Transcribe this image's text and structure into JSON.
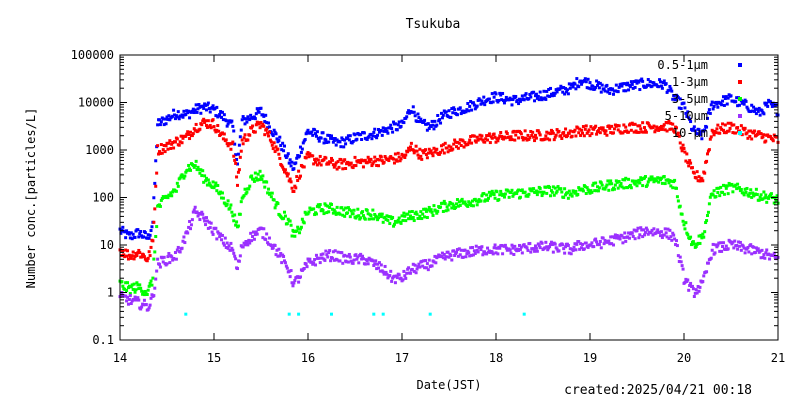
{
  "chart_data": {
    "type": "scatter",
    "title": "Tsukuba",
    "xlabel": "Date(JST)",
    "ylabel": "Number conc.[particles/L]",
    "x_ticks": [
      "14",
      "15",
      "16",
      "17",
      "18",
      "19",
      "20",
      "21"
    ],
    "xlim": [
      14,
      21
    ],
    "y_scale": "log",
    "ylim": [
      0.1,
      100000
    ],
    "y_ticks": [
      "0.1",
      "1",
      "10",
      "100",
      "1000",
      "10000",
      "100000"
    ],
    "legend_position": "top-right",
    "series": [
      {
        "name": "0.5-1μm",
        "color": "#0000ff",
        "points": [
          [
            14.0,
            20
          ],
          [
            14.1,
            15
          ],
          [
            14.2,
            18
          ],
          [
            14.3,
            14
          ],
          [
            14.35,
            30
          ],
          [
            14.4,
            3500
          ],
          [
            14.5,
            4500
          ],
          [
            14.6,
            6000
          ],
          [
            14.7,
            5500
          ],
          [
            14.8,
            7000
          ],
          [
            14.9,
            8000
          ],
          [
            15.0,
            7000
          ],
          [
            15.1,
            5000
          ],
          [
            15.2,
            3000
          ],
          [
            15.25,
            500
          ],
          [
            15.3,
            4000
          ],
          [
            15.4,
            5000
          ],
          [
            15.5,
            6500
          ],
          [
            15.6,
            3000
          ],
          [
            15.7,
            1500
          ],
          [
            15.8,
            600
          ],
          [
            15.85,
            400
          ],
          [
            15.9,
            800
          ],
          [
            16.0,
            2500
          ],
          [
            16.1,
            2000
          ],
          [
            16.2,
            1700
          ],
          [
            16.3,
            1400
          ],
          [
            16.4,
            1500
          ],
          [
            16.5,
            1800
          ],
          [
            16.6,
            2000
          ],
          [
            16.7,
            2200
          ],
          [
            16.8,
            2500
          ],
          [
            16.9,
            3000
          ],
          [
            17.0,
            3200
          ],
          [
            17.05,
            5000
          ],
          [
            17.1,
            8000
          ],
          [
            17.2,
            3500
          ],
          [
            17.3,
            3000
          ],
          [
            17.4,
            4500
          ],
          [
            17.5,
            6000
          ],
          [
            17.7,
            8000
          ],
          [
            17.9,
            12000
          ],
          [
            18.0,
            13000
          ],
          [
            18.2,
            11000
          ],
          [
            18.4,
            13000
          ],
          [
            18.6,
            16000
          ],
          [
            18.8,
            20000
          ],
          [
            18.9,
            30000
          ],
          [
            19.0,
            25000
          ],
          [
            19.2,
            18000
          ],
          [
            19.4,
            22000
          ],
          [
            19.6,
            25000
          ],
          [
            19.8,
            24000
          ],
          [
            19.9,
            12000
          ],
          [
            20.0,
            8000
          ],
          [
            20.1,
            2500
          ],
          [
            20.2,
            2000
          ],
          [
            20.3,
            9000
          ],
          [
            20.5,
            12000
          ],
          [
            20.7,
            8000
          ],
          [
            20.8,
            6000
          ],
          [
            20.9,
            9000
          ],
          [
            21.0,
            7000
          ]
        ]
      },
      {
        "name": "1-3μm",
        "color": "#ff0000",
        "points": [
          [
            14.0,
            8
          ],
          [
            14.1,
            6
          ],
          [
            14.2,
            7
          ],
          [
            14.3,
            5
          ],
          [
            14.35,
            12
          ],
          [
            14.4,
            1000
          ],
          [
            14.5,
            1200
          ],
          [
            14.6,
            1500
          ],
          [
            14.7,
            1800
          ],
          [
            14.8,
            3000
          ],
          [
            14.9,
            3800
          ],
          [
            15.0,
            3500
          ],
          [
            15.1,
            1800
          ],
          [
            15.2,
            1200
          ],
          [
            15.25,
            200
          ],
          [
            15.3,
            1500
          ],
          [
            15.4,
            2500
          ],
          [
            15.5,
            3500
          ],
          [
            15.6,
            1800
          ],
          [
            15.7,
            700
          ],
          [
            15.8,
            250
          ],
          [
            15.85,
            150
          ],
          [
            15.9,
            300
          ],
          [
            16.0,
            700
          ],
          [
            16.1,
            600
          ],
          [
            16.2,
            550
          ],
          [
            16.3,
            500
          ],
          [
            16.4,
            500
          ],
          [
            16.5,
            550
          ],
          [
            16.6,
            550
          ],
          [
            16.7,
            600
          ],
          [
            16.8,
            600
          ],
          [
            16.9,
            650
          ],
          [
            17.0,
            700
          ],
          [
            17.05,
            800
          ],
          [
            17.1,
            1200
          ],
          [
            17.2,
            800
          ],
          [
            17.3,
            850
          ],
          [
            17.4,
            1000
          ],
          [
            17.5,
            1200
          ],
          [
            17.7,
            1500
          ],
          [
            17.9,
            1800
          ],
          [
            18.0,
            1800
          ],
          [
            18.2,
            2000
          ],
          [
            18.4,
            2000
          ],
          [
            18.6,
            2100
          ],
          [
            18.8,
            2300
          ],
          [
            18.9,
            2600
          ],
          [
            19.0,
            2500
          ],
          [
            19.2,
            2600
          ],
          [
            19.4,
            3000
          ],
          [
            19.6,
            3000
          ],
          [
            19.8,
            3200
          ],
          [
            19.9,
            3000
          ],
          [
            20.0,
            900
          ],
          [
            20.1,
            300
          ],
          [
            20.2,
            250
          ],
          [
            20.3,
            2500
          ],
          [
            20.5,
            3000
          ],
          [
            20.7,
            2200
          ],
          [
            20.8,
            2000
          ],
          [
            20.9,
            1800
          ],
          [
            21.0,
            1600
          ]
        ]
      },
      {
        "name": "3-5μm",
        "color": "#00ff00",
        "points": [
          [
            14.0,
            1.5
          ],
          [
            14.1,
            1.2
          ],
          [
            14.2,
            1.3
          ],
          [
            14.3,
            1
          ],
          [
            14.35,
            2
          ],
          [
            14.4,
            60
          ],
          [
            14.5,
            100
          ],
          [
            14.6,
            150
          ],
          [
            14.7,
            400
          ],
          [
            14.8,
            500
          ],
          [
            14.9,
            250
          ],
          [
            15.0,
            180
          ],
          [
            15.1,
            100
          ],
          [
            15.2,
            50
          ],
          [
            15.25,
            20
          ],
          [
            15.3,
            100
          ],
          [
            15.4,
            250
          ],
          [
            15.5,
            300
          ],
          [
            15.6,
            120
          ],
          [
            15.7,
            50
          ],
          [
            15.8,
            30
          ],
          [
            15.85,
            15
          ],
          [
            15.9,
            20
          ],
          [
            16.0,
            50
          ],
          [
            16.1,
            55
          ],
          [
            16.2,
            60
          ],
          [
            16.3,
            55
          ],
          [
            16.4,
            50
          ],
          [
            16.5,
            45
          ],
          [
            16.6,
            45
          ],
          [
            16.7,
            45
          ],
          [
            16.8,
            35
          ],
          [
            16.9,
            30
          ],
          [
            17.0,
            35
          ],
          [
            17.05,
            40
          ],
          [
            17.1,
            40
          ],
          [
            17.2,
            45
          ],
          [
            17.3,
            50
          ],
          [
            17.4,
            60
          ],
          [
            17.5,
            70
          ],
          [
            17.7,
            80
          ],
          [
            17.9,
            100
          ],
          [
            18.0,
            110
          ],
          [
            18.2,
            120
          ],
          [
            18.4,
            130
          ],
          [
            18.6,
            140
          ],
          [
            18.8,
            120
          ],
          [
            18.9,
            150
          ],
          [
            19.0,
            150
          ],
          [
            19.2,
            180
          ],
          [
            19.4,
            200
          ],
          [
            19.6,
            220
          ],
          [
            19.8,
            230
          ],
          [
            19.9,
            200
          ],
          [
            20.0,
            30
          ],
          [
            20.1,
            10
          ],
          [
            20.2,
            15
          ],
          [
            20.3,
            120
          ],
          [
            20.5,
            160
          ],
          [
            20.7,
            130
          ],
          [
            20.8,
            110
          ],
          [
            20.9,
            100
          ],
          [
            21.0,
            90
          ]
        ]
      },
      {
        "name": "5-10μm",
        "color": "#9b30ff",
        "points": [
          [
            14.0,
            0.8
          ],
          [
            14.1,
            0.7
          ],
          [
            14.2,
            0.6
          ],
          [
            14.3,
            0.5
          ],
          [
            14.35,
            0.8
          ],
          [
            14.4,
            4
          ],
          [
            14.5,
            5
          ],
          [
            14.6,
            6
          ],
          [
            14.7,
            15
          ],
          [
            14.8,
            50
          ],
          [
            14.9,
            35
          ],
          [
            15.0,
            20
          ],
          [
            15.1,
            12
          ],
          [
            15.2,
            8
          ],
          [
            15.25,
            3
          ],
          [
            15.3,
            10
          ],
          [
            15.4,
            15
          ],
          [
            15.5,
            20
          ],
          [
            15.6,
            12
          ],
          [
            15.7,
            6
          ],
          [
            15.8,
            3
          ],
          [
            15.85,
            1.5
          ],
          [
            15.9,
            2
          ],
          [
            16.0,
            4
          ],
          [
            16.1,
            5
          ],
          [
            16.2,
            6
          ],
          [
            16.3,
            6
          ],
          [
            16.4,
            5
          ],
          [
            16.5,
            5
          ],
          [
            16.6,
            5
          ],
          [
            16.7,
            4
          ],
          [
            16.8,
            3
          ],
          [
            16.9,
            2
          ],
          [
            17.0,
            2
          ],
          [
            17.05,
            2.5
          ],
          [
            17.1,
            3
          ],
          [
            17.2,
            3.5
          ],
          [
            17.3,
            4
          ],
          [
            17.4,
            5
          ],
          [
            17.5,
            6
          ],
          [
            17.7,
            7
          ],
          [
            17.9,
            8
          ],
          [
            18.0,
            8
          ],
          [
            18.2,
            8
          ],
          [
            18.4,
            9
          ],
          [
            18.6,
            9
          ],
          [
            18.8,
            8
          ],
          [
            18.9,
            10
          ],
          [
            19.0,
            10
          ],
          [
            19.2,
            12
          ],
          [
            19.4,
            15
          ],
          [
            19.6,
            20
          ],
          [
            19.8,
            18
          ],
          [
            19.9,
            15
          ],
          [
            20.0,
            2
          ],
          [
            20.1,
            1
          ],
          [
            20.2,
            1.5
          ],
          [
            20.3,
            8
          ],
          [
            20.5,
            10
          ],
          [
            20.7,
            8
          ],
          [
            20.8,
            7
          ],
          [
            20.9,
            6
          ],
          [
            21.0,
            5
          ]
        ]
      },
      {
        "name": "10-μm",
        "color": "#00ffff",
        "points": [
          [
            14.7,
            0.35
          ],
          [
            15.8,
            0.35
          ],
          [
            15.9,
            0.35
          ],
          [
            16.25,
            0.35
          ],
          [
            16.7,
            0.35
          ],
          [
            16.8,
            0.35
          ],
          [
            17.3,
            0.35
          ],
          [
            18.3,
            0.35
          ]
        ]
      }
    ]
  },
  "footer": {
    "created": "created:2025/04/21 00:18"
  }
}
